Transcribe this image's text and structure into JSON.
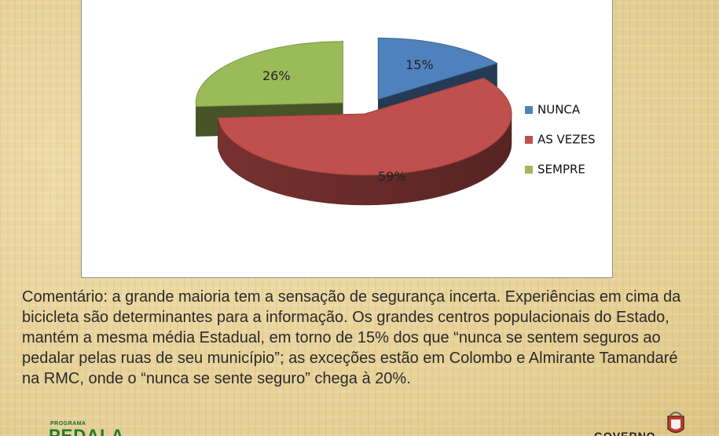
{
  "chart_data": {
    "type": "pie",
    "three_d": true,
    "title": "",
    "categories": [
      "NUNCA",
      "AS VEZES",
      "SEMPRE"
    ],
    "values": [
      15,
      59,
      26
    ],
    "data_labels": [
      "15%",
      "59%",
      "26%"
    ],
    "colors": [
      "#4f81bd",
      "#c0504d",
      "#9bbb59"
    ],
    "exploded": true,
    "legend_position": "right"
  },
  "comment": "Comentário: a grande maioria tem a sensação de segurança incerta. Experiências em cima da bicicleta são determinantes para a informação. Os grandes centros populacionais do Estado, mantém a mesma média Estadual, em torno de 15% dos que  “nunca se sentem seguros ao pedalar pelas ruas de seu município”; as exceções estão em Colombo e Almirante Tamandaré na RMC, onde o “nunca se sente seguro” chega à 20%.",
  "logos": {
    "left_small": "PROGRAMA",
    "left_big": "PEDALA",
    "right": "GOVERNO"
  }
}
